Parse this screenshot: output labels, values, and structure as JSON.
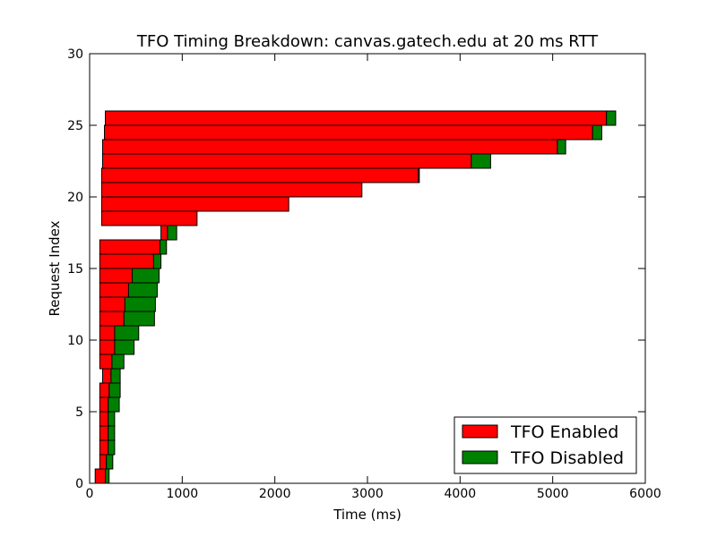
{
  "chart_data": {
    "type": "bar",
    "orientation": "horizontal",
    "stacked": true,
    "title": "TFO Timing Breakdown: canvas.gatech.edu at 20 ms RTT",
    "xlabel": "Time (ms)",
    "ylabel": "Request Index",
    "xlim": [
      0,
      6000
    ],
    "ylim": [
      0,
      30
    ],
    "xticks": [
      0,
      1000,
      2000,
      3000,
      4000,
      5000,
      6000
    ],
    "yticks": [
      0,
      5,
      10,
      15,
      20,
      25,
      30
    ],
    "grid": false,
    "legend": {
      "placement": "lower-right"
    },
    "series": [
      {
        "name": "TFO Enabled",
        "color": "#ff0000"
      },
      {
        "name": "TFO Disabled",
        "color": "#008000"
      }
    ],
    "bars": [
      {
        "index": 0,
        "start": 60,
        "enabled_end": 170,
        "disabled_end": 210
      },
      {
        "index": 1,
        "start": 110,
        "enabled_end": 180,
        "disabled_end": 250
      },
      {
        "index": 2,
        "start": 110,
        "enabled_end": 200,
        "disabled_end": 270
      },
      {
        "index": 3,
        "start": 110,
        "enabled_end": 200,
        "disabled_end": 270
      },
      {
        "index": 4,
        "start": 110,
        "enabled_end": 200,
        "disabled_end": 270
      },
      {
        "index": 5,
        "start": 110,
        "enabled_end": 200,
        "disabled_end": 320
      },
      {
        "index": 6,
        "start": 110,
        "enabled_end": 210,
        "disabled_end": 330
      },
      {
        "index": 7,
        "start": 140,
        "enabled_end": 230,
        "disabled_end": 330
      },
      {
        "index": 8,
        "start": 110,
        "enabled_end": 240,
        "disabled_end": 370
      },
      {
        "index": 9,
        "start": 110,
        "enabled_end": 270,
        "disabled_end": 480
      },
      {
        "index": 10,
        "start": 110,
        "enabled_end": 270,
        "disabled_end": 530
      },
      {
        "index": 11,
        "start": 110,
        "enabled_end": 370,
        "disabled_end": 700
      },
      {
        "index": 12,
        "start": 110,
        "enabled_end": 380,
        "disabled_end": 710
      },
      {
        "index": 13,
        "start": 110,
        "enabled_end": 420,
        "disabled_end": 730
      },
      {
        "index": 14,
        "start": 110,
        "enabled_end": 460,
        "disabled_end": 750
      },
      {
        "index": 15,
        "start": 110,
        "enabled_end": 690,
        "disabled_end": 770
      },
      {
        "index": 16,
        "start": 110,
        "enabled_end": 760,
        "disabled_end": 830
      },
      {
        "index": 17,
        "start": 770,
        "enabled_end": 840,
        "disabled_end": 940
      },
      {
        "index": 18,
        "start": 130,
        "enabled_end": 1160,
        "disabled_end": 1160
      },
      {
        "index": 19,
        "start": 130,
        "enabled_end": 2150,
        "disabled_end": 2150
      },
      {
        "index": 20,
        "start": 130,
        "enabled_end": 2940,
        "disabled_end": 2940
      },
      {
        "index": 21,
        "start": 130,
        "enabled_end": 3550,
        "disabled_end": 3560
      },
      {
        "index": 22,
        "start": 140,
        "enabled_end": 4120,
        "disabled_end": 4330
      },
      {
        "index": 23,
        "start": 140,
        "enabled_end": 5050,
        "disabled_end": 5140
      },
      {
        "index": 24,
        "start": 160,
        "enabled_end": 5430,
        "disabled_end": 5530
      },
      {
        "index": 25,
        "start": 170,
        "enabled_end": 5580,
        "disabled_end": 5680
      }
    ]
  }
}
